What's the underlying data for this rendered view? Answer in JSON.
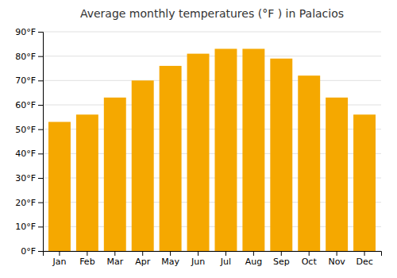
{
  "chart_data": {
    "type": "bar",
    "title": "Average monthly temperatures (°F ) in Palacios",
    "categories": [
      "Jan",
      "Feb",
      "Mar",
      "Apr",
      "May",
      "Jun",
      "Jul",
      "Aug",
      "Sep",
      "Oct",
      "Nov",
      "Dec"
    ],
    "values": [
      53,
      56,
      63,
      70,
      76,
      81,
      83,
      83,
      79,
      72,
      63,
      56
    ],
    "color": "#F5A800",
    "ylim": [
      0,
      90
    ],
    "yticks": [
      {
        "value": 0,
        "label": "0°F"
      },
      {
        "value": 10,
        "label": "10°F"
      },
      {
        "value": 20,
        "label": "20°F"
      },
      {
        "value": 30,
        "label": "30°F"
      },
      {
        "value": 40,
        "label": "40°F"
      },
      {
        "value": 50,
        "label": "50°F"
      },
      {
        "value": 60,
        "label": "60°F"
      },
      {
        "value": 70,
        "label": "70°F"
      },
      {
        "value": 80,
        "label": "80°F"
      },
      {
        "value": 90,
        "label": "90°F"
      }
    ],
    "grid": true
  }
}
